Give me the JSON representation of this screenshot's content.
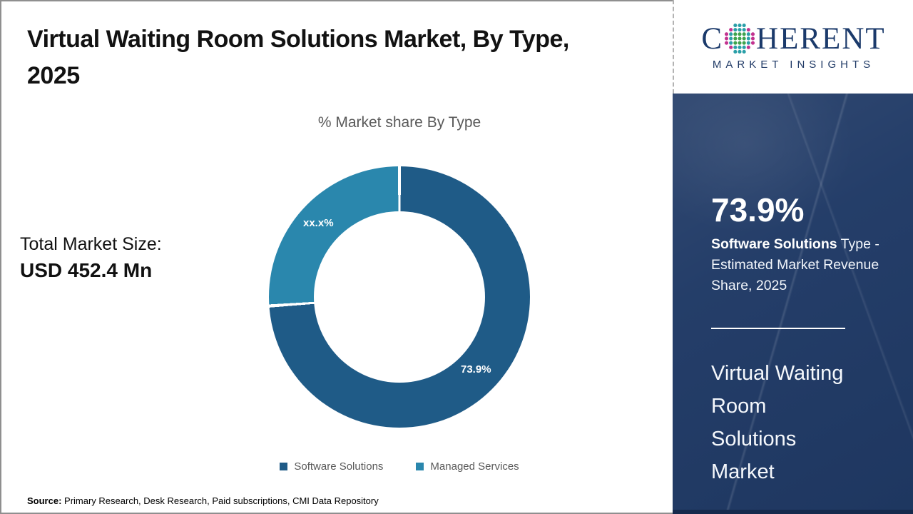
{
  "header": {
    "title": "Virtual Waiting Room Solutions Market, By Type,\n2025"
  },
  "logo": {
    "brand_first_letter": "C",
    "brand_rest": "HERENT",
    "brand_subtitle": "MARKET INSIGHTS"
  },
  "chart_data": {
    "type": "pie",
    "subtype": "donut",
    "title": "% Market share By Type",
    "categories": [
      "Software Solutions",
      "Managed Services"
    ],
    "values": [
      73.9,
      26.1
    ],
    "slice_labels": [
      "73.9%",
      "xx.x%"
    ],
    "colors": [
      "#1f5b87",
      "#2a87ad"
    ],
    "start_angle_deg": 0,
    "direction": "clockwise",
    "legend_position": "bottom",
    "hole_ratio": 0.65
  },
  "callout": {
    "total_market_label": "Total Market Size:",
    "total_market_value": "USD 452.4 Mn"
  },
  "sidebar": {
    "stat_value": "73.9%",
    "stat_highlight": "Software Solutions",
    "stat_rest": " Type - Estimated Market Revenue Share, 2025",
    "market_title": "Virtual Waiting\nRoom\nSolutions\nMarket"
  },
  "footer": {
    "source_label": "Source:",
    "source_text": " Primary Research, Desk Research, Paid subscriptions, CMI Data Repository"
  }
}
